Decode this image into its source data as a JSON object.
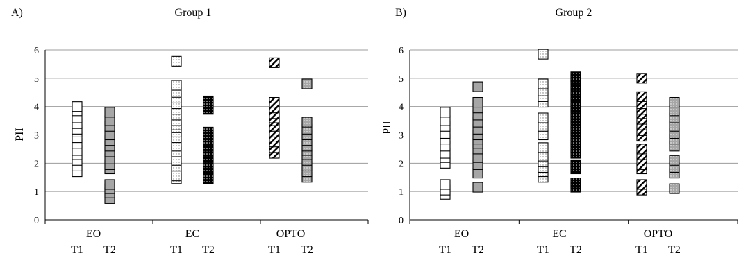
{
  "colors": {
    "axis": "#000000",
    "grid": "#9c9c9c",
    "white_fill": "#ffffff",
    "gray_fill": "#a6a6a6",
    "black_fill": "#000000",
    "dot_fill": "#ffffff"
  },
  "chart_data": [
    {
      "type": "scatter",
      "panel_label": "A)",
      "title": "Group 1",
      "ylabel": "PII",
      "xlabel": "",
      "ylim": [
        0,
        6
      ],
      "yticks": [
        0,
        1,
        2,
        3,
        4,
        5,
        6
      ],
      "grid": true,
      "groups": [
        "EO",
        "EC",
        "OPTO"
      ],
      "times": [
        "T1",
        "T2"
      ],
      "series": [
        {
          "group": "EO",
          "time": "T1",
          "pattern": "plain-white",
          "values": [
            1.7,
            1.9,
            2.1,
            2.3,
            2.45,
            2.7,
            2.9,
            3.1,
            3.2,
            3.4,
            3.6,
            3.85,
            4.0
          ]
        },
        {
          "group": "EO",
          "time": "T2",
          "pattern": "plain-gray",
          "values": [
            0.75,
            0.95,
            1.1,
            1.25,
            1.8,
            1.95,
            2.15,
            2.4,
            2.6,
            2.8,
            3.0,
            3.3,
            3.5,
            3.8
          ]
        },
        {
          "group": "EC",
          "time": "T1",
          "pattern": "dotted-white",
          "values": [
            1.45,
            1.55,
            1.9,
            2.1,
            2.4,
            2.6,
            2.9,
            3.1,
            3.25,
            3.35,
            3.5,
            3.7,
            3.9,
            4.1,
            4.3,
            4.5,
            4.75,
            5.6
          ]
        },
        {
          "group": "EC",
          "time": "T2",
          "pattern": "dotted-black",
          "values": [
            1.45,
            1.6,
            1.8,
            2.0,
            2.2,
            2.4,
            2.6,
            2.8,
            3.0,
            3.1,
            3.9,
            4.1,
            4.2
          ]
        },
        {
          "group": "OPTO",
          "time": "T1",
          "pattern": "hatched-white",
          "values": [
            2.35,
            2.55,
            2.75,
            2.95,
            3.1,
            3.3,
            3.5,
            3.6,
            3.75,
            3.95,
            4.15,
            5.55
          ]
        },
        {
          "group": "OPTO",
          "time": "T2",
          "pattern": "dotted-gray",
          "values": [
            1.5,
            1.7,
            1.9,
            2.1,
            2.3,
            2.45,
            2.6,
            2.8,
            3.0,
            3.2,
            3.45,
            4.8
          ]
        }
      ]
    },
    {
      "type": "scatter",
      "panel_label": "B)",
      "title": "Group 2",
      "ylabel": "PII",
      "xlabel": "",
      "ylim": [
        0,
        6
      ],
      "yticks": [
        0,
        1,
        2,
        3,
        4,
        5,
        6
      ],
      "grid": true,
      "groups": [
        "EO",
        "EC",
        "OPTO"
      ],
      "times": [
        "T1",
        "T2"
      ],
      "series": [
        {
          "group": "EO",
          "time": "T1",
          "pattern": "plain-white",
          "values": [
            0.9,
            1.05,
            1.25,
            2.0,
            2.2,
            2.35,
            2.6,
            2.85,
            3.05,
            3.3,
            3.5,
            3.8
          ]
        },
        {
          "group": "EO",
          "time": "T2",
          "pattern": "plain-gray",
          "values": [
            1.15,
            1.65,
            1.95,
            2.2,
            2.5,
            2.7,
            2.85,
            3.0,
            3.2,
            3.45,
            3.7,
            3.95,
            4.15,
            4.7
          ]
        },
        {
          "group": "EC",
          "time": "T1",
          "pattern": "dotted-white",
          "values": [
            1.5,
            1.7,
            1.85,
            2.05,
            2.25,
            2.55,
            3.0,
            3.3,
            3.6,
            4.15,
            4.35,
            4.55,
            4.8,
            5.85
          ]
        },
        {
          "group": "EC",
          "time": "T2",
          "pattern": "dotted-black",
          "values": [
            1.15,
            1.3,
            1.8,
            1.95,
            2.35,
            2.55,
            2.75,
            2.95,
            3.15,
            3.35,
            3.55,
            3.75,
            3.95,
            4.15,
            4.35,
            4.55,
            4.75,
            4.95,
            5.05
          ]
        },
        {
          "group": "OPTO",
          "time": "T1",
          "pattern": "hatched-white",
          "values": [
            1.05,
            1.25,
            1.8,
            1.95,
            2.3,
            2.5,
            2.95,
            3.15,
            3.35,
            3.55,
            3.75,
            3.9,
            4.1,
            4.35,
            5.0
          ]
        },
        {
          "group": "OPTO",
          "time": "T2",
          "pattern": "dotted-gray",
          "values": [
            1.1,
            1.65,
            1.85,
            2.1,
            2.6,
            2.85,
            3.05,
            3.3,
            3.6,
            3.85,
            4.15
          ]
        }
      ]
    }
  ]
}
